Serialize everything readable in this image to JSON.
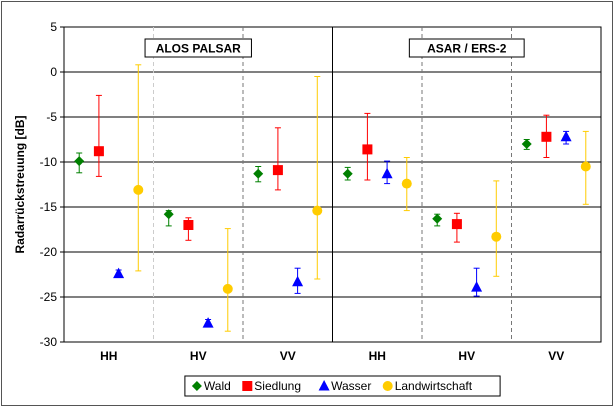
{
  "chart_data": {
    "type": "scatter",
    "ylabel": "Radarrückstreuung [dB]",
    "ylim": [
      -30,
      5
    ],
    "yticks": [
      5,
      0,
      -5,
      -10,
      -15,
      -20,
      -25,
      -30
    ],
    "grid": true,
    "legend_position": "bottom-center",
    "panels": [
      {
        "title": "ALOS PALSAR",
        "categories": [
          "HH",
          "HV",
          "VV"
        ]
      },
      {
        "title": "ASAR / ERS-2",
        "categories": [
          "HH",
          "HV",
          "VV"
        ]
      }
    ],
    "series": [
      {
        "name": "Wald",
        "marker": "diamond",
        "color": "#008000",
        "points": [
          {
            "panel": 0,
            "category": "HH",
            "y": -9.9,
            "low": -11.2,
            "high": -9.0
          },
          {
            "panel": 0,
            "category": "HV",
            "y": -15.8,
            "low": -17.1,
            "high": -15.4
          },
          {
            "panel": 0,
            "category": "VV",
            "y": -11.3,
            "low": -12.2,
            "high": -10.5
          },
          {
            "panel": 1,
            "category": "HH",
            "y": -11.3,
            "low": -12.0,
            "high": -10.6
          },
          {
            "panel": 1,
            "category": "HV",
            "y": -16.3,
            "low": -17.1,
            "high": -15.8
          },
          {
            "panel": 1,
            "category": "VV",
            "y": -8.0,
            "low": -8.6,
            "high": -7.5
          }
        ]
      },
      {
        "name": "Siedlung",
        "marker": "square",
        "color": "#ff0000",
        "points": [
          {
            "panel": 0,
            "category": "HH",
            "y": -8.8,
            "low": -11.6,
            "high": -2.6
          },
          {
            "panel": 0,
            "category": "HV",
            "y": -17.0,
            "low": -18.7,
            "high": -16.2
          },
          {
            "panel": 0,
            "category": "VV",
            "y": -10.9,
            "low": -13.1,
            "high": -6.2
          },
          {
            "panel": 1,
            "category": "HH",
            "y": -8.6,
            "low": -12.0,
            "high": -4.6
          },
          {
            "panel": 1,
            "category": "HV",
            "y": -16.9,
            "low": -18.9,
            "high": -15.7
          },
          {
            "panel": 1,
            "category": "VV",
            "y": -7.2,
            "low": -9.5,
            "high": -4.8
          }
        ]
      },
      {
        "name": "Wasser",
        "marker": "triangle",
        "color": "#0000ff",
        "points": [
          {
            "panel": 0,
            "category": "HH",
            "y": -22.4,
            "low": -22.6,
            "high": -22.0
          },
          {
            "panel": 0,
            "category": "HV",
            "y": -27.9,
            "low": -28.3,
            "high": -27.5
          },
          {
            "panel": 0,
            "category": "VV",
            "y": -23.3,
            "low": -24.6,
            "high": -21.8
          },
          {
            "panel": 1,
            "category": "HH",
            "y": -11.3,
            "low": -12.4,
            "high": -9.9
          },
          {
            "panel": 1,
            "category": "HV",
            "y": -23.9,
            "low": -24.9,
            "high": -21.8
          },
          {
            "panel": 1,
            "category": "VV",
            "y": -7.2,
            "low": -8.0,
            "high": -6.6
          }
        ]
      },
      {
        "name": "Landwirtschaft",
        "marker": "circle",
        "color": "#ffcc00",
        "points": [
          {
            "panel": 0,
            "category": "HH",
            "y": -13.1,
            "low": -22.1,
            "high": 0.8
          },
          {
            "panel": 0,
            "category": "HV",
            "y": -24.1,
            "low": -28.8,
            "high": -17.4
          },
          {
            "panel": 0,
            "category": "VV",
            "y": -15.4,
            "low": -23.0,
            "high": -0.5
          },
          {
            "panel": 1,
            "category": "HH",
            "y": -12.4,
            "low": -15.4,
            "high": -9.5
          },
          {
            "panel": 1,
            "category": "HV",
            "y": -18.3,
            "low": -22.7,
            "high": -12.1
          },
          {
            "panel": 1,
            "category": "VV",
            "y": -10.5,
            "low": -14.7,
            "high": -6.6
          }
        ]
      }
    ]
  }
}
